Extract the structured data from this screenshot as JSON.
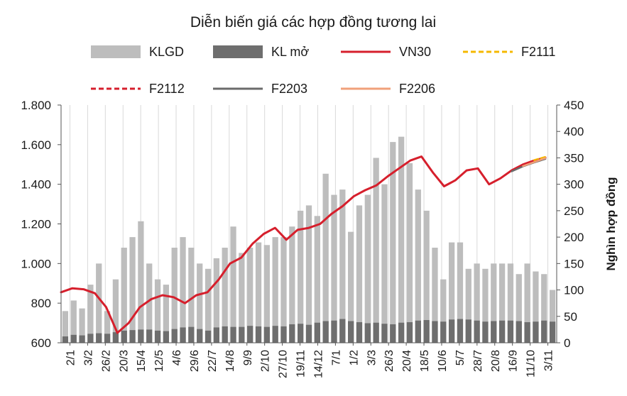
{
  "chart_data": {
    "type": "line",
    "title": "Diễn biến giá các hợp đồng tương lai",
    "x_tick_labels": [
      "2/1",
      "3/2",
      "26/2",
      "20/3",
      "15/4",
      "12/5",
      "4/6",
      "29/6",
      "22/7",
      "14/8",
      "9/9",
      "2/10",
      "27/10",
      "19/11",
      "14/12",
      "7/1",
      "1/2",
      "3/3",
      "26/3",
      "20/4",
      "18/5",
      "10/6",
      "5/7",
      "28/7",
      "20/8",
      "16/9",
      "11/10",
      "3/11"
    ],
    "y_left": {
      "ticks": [
        "600",
        "800",
        "1.000",
        "1.200",
        "1.400",
        "1.600",
        "1.800"
      ],
      "min": 600,
      "max": 1800
    },
    "y_right": {
      "label": "Nghìn hợp đồng",
      "ticks": [
        "0",
        "50",
        "100",
        "150",
        "200",
        "250",
        "300",
        "350",
        "400",
        "450"
      ],
      "min": 0,
      "max": 450
    },
    "grid": "vertical",
    "legend": [
      "KLGD",
      "KL mở",
      "VN30",
      "F2111",
      "F2112",
      "F2203",
      "F2206"
    ],
    "colors": {
      "KLGD": "#bdbdbd",
      "KL mở": "#6e6e6e",
      "VN30": "#d61f2c",
      "F2111": "#f5b800",
      "F2112": "#d61f2c",
      "F2203": "#6b6b6b",
      "F2206": "#f0a07a"
    },
    "series": [
      {
        "name": "VN30",
        "axis": "left",
        "points": [
          [
            0,
            855
          ],
          [
            1,
            875
          ],
          [
            2,
            870
          ],
          [
            3,
            850
          ],
          [
            4,
            780
          ],
          [
            5,
            650
          ],
          [
            6,
            700
          ],
          [
            7,
            780
          ],
          [
            8,
            820
          ],
          [
            9,
            840
          ],
          [
            10,
            830
          ],
          [
            11,
            800
          ],
          [
            12,
            840
          ],
          [
            13,
            855
          ],
          [
            14,
            920
          ],
          [
            15,
            1000
          ],
          [
            16,
            1030
          ],
          [
            17,
            1100
          ],
          [
            18,
            1150
          ],
          [
            19,
            1180
          ],
          [
            20,
            1120
          ],
          [
            21,
            1170
          ],
          [
            22,
            1180
          ],
          [
            23,
            1200
          ],
          [
            24,
            1250
          ],
          [
            25,
            1290
          ],
          [
            26,
            1340
          ],
          [
            27,
            1370
          ],
          [
            28,
            1395
          ],
          [
            29,
            1440
          ],
          [
            30,
            1480
          ],
          [
            31,
            1520
          ],
          [
            32,
            1540
          ],
          [
            33,
            1460
          ],
          [
            34,
            1390
          ],
          [
            35,
            1420
          ],
          [
            36,
            1470
          ],
          [
            37,
            1480
          ],
          [
            38,
            1400
          ],
          [
            39,
            1430
          ],
          [
            40,
            1470
          ],
          [
            41,
            1500
          ],
          [
            42,
            1520
          ],
          [
            43,
            1535
          ]
        ]
      },
      {
        "name": "F2111",
        "axis": "left",
        "points": [
          [
            42,
            1522
          ],
          [
            43,
            1538
          ]
        ]
      },
      {
        "name": "F2112",
        "axis": "left",
        "points": [
          [
            41,
            1495
          ],
          [
            42,
            1515
          ],
          [
            43,
            1530
          ]
        ]
      },
      {
        "name": "F2203",
        "axis": "left",
        "points": [
          [
            40,
            1465
          ],
          [
            41,
            1490
          ],
          [
            42,
            1510
          ],
          [
            43,
            1528
          ]
        ]
      },
      {
        "name": "F2206",
        "axis": "left",
        "points": [
          [
            41,
            1492
          ],
          [
            42,
            1512
          ],
          [
            43,
            1532
          ]
        ]
      }
    ],
    "bars": [
      {
        "name": "KLGD",
        "axis": "right",
        "values": [
          60,
          80,
          65,
          110,
          150,
          60,
          120,
          180,
          200,
          230,
          150,
          120,
          110,
          180,
          200,
          180,
          150,
          140,
          160,
          180,
          220,
          170,
          180,
          190,
          185,
          200,
          200,
          220,
          250,
          260,
          240,
          320,
          280,
          290,
          210,
          260,
          280,
          350,
          300,
          380,
          390,
          340,
          290,
          250,
          180,
          120,
          190,
          190,
          140,
          150,
          140,
          150,
          150,
          150,
          130,
          150,
          135,
          130,
          100
        ]
      },
      {
        "name": "KL mở",
        "axis": "right",
        "values": [
          12,
          15,
          14,
          17,
          18,
          17,
          20,
          23,
          24,
          25,
          25,
          23,
          22,
          26,
          29,
          30,
          26,
          23,
          29,
          31,
          30,
          30,
          32,
          31,
          30,
          32,
          31,
          35,
          36,
          34,
          38,
          41,
          42,
          45,
          41,
          39,
          37,
          38,
          36,
          35,
          38,
          39,
          42,
          43,
          41,
          40,
          44,
          45,
          44,
          42,
          40,
          41,
          42,
          42,
          41,
          39,
          40,
          42,
          40
        ]
      }
    ]
  }
}
